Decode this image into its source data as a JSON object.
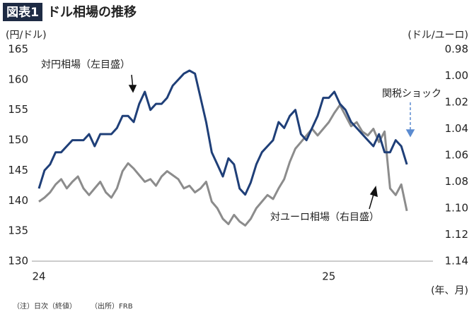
{
  "badge": "図表1",
  "chart_data": {
    "type": "line",
    "title": "ドル相場の推移",
    "ylabel": "(円/ドル)",
    "y2label": "(ドル/ユーロ)",
    "xlabel": "(年、月)",
    "annotations": [
      "対円相場（左目盛）",
      "対ユーロ相場（右目盛）",
      "関税ショック"
    ],
    "categories": [
      "24",
      null,
      null,
      null,
      null,
      null,
      null,
      null,
      null,
      null,
      null,
      null,
      null,
      null,
      null,
      null,
      null,
      null,
      null,
      null,
      null,
      null,
      null,
      null,
      null,
      null,
      null,
      null,
      null,
      null,
      null,
      null,
      null,
      null,
      null,
      null,
      null,
      null,
      null,
      null,
      null,
      null,
      null,
      null,
      null,
      null,
      null,
      null,
      null,
      null,
      null,
      null,
      "25",
      null,
      null,
      null,
      null,
      null,
      null,
      null,
      null,
      null,
      null,
      null,
      null,
      null,
      null
    ],
    "series": [
      {
        "name": "対円相場",
        "color": "#1f3f78",
        "axis": "y",
        "values": [
          142,
          145,
          146,
          148,
          148,
          149,
          150,
          150,
          150,
          151,
          149,
          151,
          151,
          151,
          152,
          154,
          154,
          153,
          156,
          158,
          155,
          156,
          156,
          157,
          159,
          160,
          161,
          161.5,
          161,
          157,
          153,
          148,
          146,
          144,
          147,
          146,
          142,
          141,
          143,
          146,
          148,
          149,
          150,
          153,
          152,
          154,
          155,
          151,
          150,
          152,
          154,
          157,
          157,
          158,
          156,
          155,
          153,
          152,
          151,
          150,
          149,
          151,
          148,
          148,
          150,
          149,
          146
        ]
      },
      {
        "name": "対ユーロ相場",
        "color": "#8c8c8c",
        "axis": "y2",
        "values": [
          1.095,
          1.092,
          1.088,
          1.082,
          1.078,
          1.085,
          1.08,
          1.076,
          1.085,
          1.09,
          1.085,
          1.08,
          1.088,
          1.092,
          1.085,
          1.072,
          1.066,
          1.07,
          1.075,
          1.08,
          1.078,
          1.083,
          1.076,
          1.072,
          1.075,
          1.078,
          1.085,
          1.083,
          1.088,
          1.085,
          1.08,
          1.095,
          1.1,
          1.108,
          1.112,
          1.105,
          1.11,
          1.113,
          1.108,
          1.1,
          1.095,
          1.09,
          1.093,
          1.085,
          1.078,
          1.065,
          1.055,
          1.05,
          1.045,
          1.04,
          1.045,
          1.04,
          1.035,
          1.028,
          1.022,
          1.03,
          1.038,
          1.035,
          1.042,
          1.045,
          1.04,
          1.05,
          1.042,
          1.085,
          1.09,
          1.082,
          1.102
        ]
      }
    ],
    "ylim": [
      130,
      165
    ],
    "yticks": [
      130,
      135,
      140,
      145,
      150,
      155,
      160,
      165
    ],
    "y2lim": [
      1.14,
      0.98
    ],
    "y2ticks": [
      0.98,
      {
        "value": 1,
        "label": "1.00"
      },
      1.02,
      1.04,
      1.06,
      1.08,
      {
        "value": 1.1,
        "label": "1.10"
      },
      1.12,
      1.14
    ]
  },
  "footnote": [
    "（注）日次（終値）",
    "（出所）FRB"
  ]
}
